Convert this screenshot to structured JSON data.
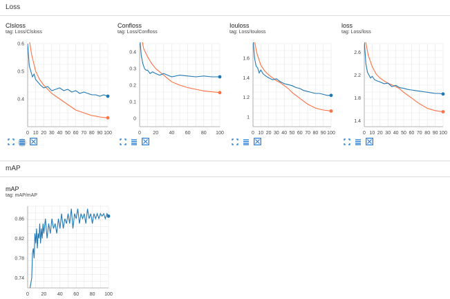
{
  "sections": [
    {
      "title": "Loss"
    },
    {
      "title": "mAP"
    }
  ],
  "colors": {
    "blue": "#1f77b4",
    "orange": "#ff7043",
    "grid": "#e6e6e6",
    "axis": "#9e9e9e",
    "icon": "#1976d2"
  },
  "icons": {
    "expand": "fit-to-screen-icon",
    "data": "toggle-data-table-icon",
    "log": "toggle-log-scale-icon"
  },
  "cards": [
    {
      "title": "Clsloss",
      "tag": "tag: Loss/Clsloss"
    },
    {
      "title": "Confloss",
      "tag": "tag: Loss/Confloss"
    },
    {
      "title": "Iouloss",
      "tag": "tag: Loss/Iouloss"
    },
    {
      "title": "loss",
      "tag": "tag: Loss/loss"
    },
    {
      "title": "mAP",
      "tag": "tag: mAP/mAP"
    }
  ],
  "chart_data": [
    {
      "type": "line",
      "title": "Clsloss",
      "xlim": [
        0,
        100
      ],
      "ylim": [
        0.3,
        0.6
      ],
      "xticks": [
        0,
        10,
        20,
        30,
        40,
        50,
        60,
        70,
        80,
        90,
        100
      ],
      "yticks": [
        0.4,
        0.5,
        0.6
      ],
      "series": [
        {
          "color": "#1f77b4",
          "x": [
            0,
            2,
            4,
            6,
            8,
            10,
            13,
            16,
            20,
            25,
            30,
            35,
            40,
            45,
            50,
            55,
            60,
            65,
            70,
            75,
            80,
            85,
            90,
            95,
            100
          ],
          "y": [
            0.6,
            0.52,
            0.5,
            0.48,
            0.49,
            0.47,
            0.46,
            0.45,
            0.44,
            0.445,
            0.43,
            0.435,
            0.44,
            0.43,
            0.435,
            0.425,
            0.43,
            0.42,
            0.425,
            0.42,
            0.415,
            0.415,
            0.41,
            0.415,
            0.41
          ]
        },
        {
          "color": "#ff7043",
          "x": [
            0,
            5,
            10,
            15,
            20,
            25,
            30,
            35,
            40,
            45,
            50,
            55,
            60,
            65,
            70,
            75,
            80,
            85,
            90,
            95,
            100
          ],
          "y": [
            0.65,
            0.56,
            0.5,
            0.47,
            0.45,
            0.435,
            0.42,
            0.41,
            0.4,
            0.39,
            0.38,
            0.37,
            0.36,
            0.355,
            0.35,
            0.345,
            0.34,
            0.338,
            0.335,
            0.333,
            0.332
          ]
        }
      ]
    },
    {
      "type": "line",
      "title": "Confloss",
      "xlim": [
        0,
        100
      ],
      "ylim": [
        -0.05,
        0.45
      ],
      "xticks": [
        0,
        20,
        40,
        60,
        80,
        100
      ],
      "yticks": [
        0,
        0.1,
        0.2,
        0.3,
        0.4
      ],
      "series": [
        {
          "color": "#1f77b4",
          "x": [
            0,
            2,
            4,
            6,
            8,
            10,
            13,
            16,
            20,
            25,
            30,
            35,
            40,
            50,
            60,
            70,
            80,
            90,
            100
          ],
          "y": [
            0.5,
            0.38,
            0.33,
            0.3,
            0.29,
            0.29,
            0.27,
            0.28,
            0.27,
            0.26,
            0.27,
            0.26,
            0.25,
            0.26,
            0.255,
            0.25,
            0.255,
            0.25,
            0.25
          ]
        },
        {
          "color": "#ff7043",
          "x": [
            0,
            5,
            10,
            15,
            20,
            25,
            30,
            35,
            40,
            50,
            60,
            70,
            80,
            90,
            100
          ],
          "y": [
            0.55,
            0.42,
            0.37,
            0.33,
            0.3,
            0.28,
            0.26,
            0.24,
            0.22,
            0.2,
            0.185,
            0.175,
            0.165,
            0.16,
            0.155
          ]
        }
      ]
    },
    {
      "type": "line",
      "title": "Iouloss",
      "xlim": [
        0,
        100
      ],
      "ylim": [
        0.9,
        1.75
      ],
      "xticks": [
        0,
        10,
        20,
        30,
        40,
        50,
        60,
        70,
        80,
        90,
        100
      ],
      "yticks": [
        1,
        1.2,
        1.4,
        1.6
      ],
      "series": [
        {
          "color": "#1f77b4",
          "x": [
            0,
            2,
            4,
            6,
            8,
            10,
            13,
            16,
            20,
            25,
            30,
            35,
            40,
            45,
            50,
            55,
            60,
            65,
            70,
            75,
            80,
            85,
            90,
            95,
            100
          ],
          "y": [
            1.8,
            1.6,
            1.52,
            1.5,
            1.45,
            1.48,
            1.44,
            1.42,
            1.4,
            1.38,
            1.39,
            1.36,
            1.34,
            1.33,
            1.32,
            1.3,
            1.29,
            1.27,
            1.26,
            1.25,
            1.24,
            1.24,
            1.23,
            1.22,
            1.22
          ]
        },
        {
          "color": "#ff7043",
          "x": [
            0,
            5,
            10,
            15,
            20,
            25,
            30,
            35,
            40,
            45,
            50,
            55,
            60,
            65,
            70,
            75,
            80,
            85,
            90,
            95,
            100
          ],
          "y": [
            1.85,
            1.65,
            1.53,
            1.47,
            1.43,
            1.4,
            1.37,
            1.35,
            1.32,
            1.29,
            1.25,
            1.22,
            1.19,
            1.16,
            1.13,
            1.11,
            1.09,
            1.08,
            1.07,
            1.065,
            1.06
          ]
        }
      ]
    },
    {
      "type": "line",
      "title": "loss",
      "xlim": [
        0,
        100
      ],
      "ylim": [
        1.3,
        2.75
      ],
      "xticks": [
        0,
        10,
        20,
        30,
        40,
        50,
        60,
        70,
        80,
        90,
        100
      ],
      "yticks": [
        1.4,
        1.8,
        2.2,
        2.6
      ],
      "series": [
        {
          "color": "#1f77b4",
          "x": [
            0,
            2,
            4,
            6,
            8,
            10,
            13,
            16,
            20,
            25,
            30,
            35,
            40,
            45,
            50,
            55,
            60,
            65,
            70,
            75,
            80,
            85,
            90,
            95,
            100
          ],
          "y": [
            2.8,
            2.4,
            2.25,
            2.2,
            2.15,
            2.18,
            2.12,
            2.1,
            2.08,
            2.05,
            2.06,
            2.0,
            2.02,
            1.98,
            1.97,
            1.95,
            1.94,
            1.93,
            1.92,
            1.91,
            1.9,
            1.89,
            1.88,
            1.88,
            1.87
          ]
        },
        {
          "color": "#ff7043",
          "x": [
            0,
            5,
            10,
            15,
            20,
            25,
            30,
            35,
            40,
            45,
            50,
            55,
            60,
            65,
            70,
            75,
            80,
            85,
            90,
            95,
            100
          ],
          "y": [
            2.9,
            2.55,
            2.35,
            2.22,
            2.15,
            2.1,
            2.06,
            2.03,
            2.0,
            1.96,
            1.9,
            1.85,
            1.8,
            1.75,
            1.7,
            1.66,
            1.62,
            1.6,
            1.58,
            1.57,
            1.56
          ]
        }
      ]
    },
    {
      "type": "line",
      "title": "mAP",
      "xlim": [
        0,
        100
      ],
      "ylim": [
        0.72,
        0.885
      ],
      "xticks": [
        0,
        20,
        40,
        60,
        80,
        100
      ],
      "yticks": [
        0.74,
        0.78,
        0.82,
        0.86
      ],
      "series": [
        {
          "color": "#1f77b4",
          "x": [
            3,
            5,
            6,
            7,
            8,
            9,
            10,
            11,
            12,
            13,
            14,
            15,
            16,
            17,
            18,
            19,
            20,
            22,
            24,
            26,
            28,
            30,
            32,
            34,
            36,
            38,
            40,
            42,
            44,
            46,
            48,
            50,
            52,
            54,
            56,
            58,
            60,
            62,
            64,
            66,
            68,
            70,
            72,
            74,
            76,
            78,
            80,
            82,
            84,
            86,
            88,
            90,
            92,
            94,
            96,
            98,
            100
          ],
          "y": [
            0.72,
            0.74,
            0.79,
            0.8,
            0.78,
            0.83,
            0.81,
            0.84,
            0.8,
            0.83,
            0.82,
            0.85,
            0.81,
            0.84,
            0.82,
            0.85,
            0.83,
            0.86,
            0.82,
            0.85,
            0.83,
            0.86,
            0.84,
            0.85,
            0.83,
            0.86,
            0.84,
            0.87,
            0.84,
            0.86,
            0.85,
            0.87,
            0.85,
            0.88,
            0.84,
            0.87,
            0.86,
            0.88,
            0.85,
            0.87,
            0.86,
            0.87,
            0.85,
            0.88,
            0.86,
            0.87,
            0.85,
            0.87,
            0.86,
            0.87,
            0.86,
            0.87,
            0.865,
            0.87,
            0.86,
            0.87,
            0.865
          ]
        }
      ]
    }
  ]
}
